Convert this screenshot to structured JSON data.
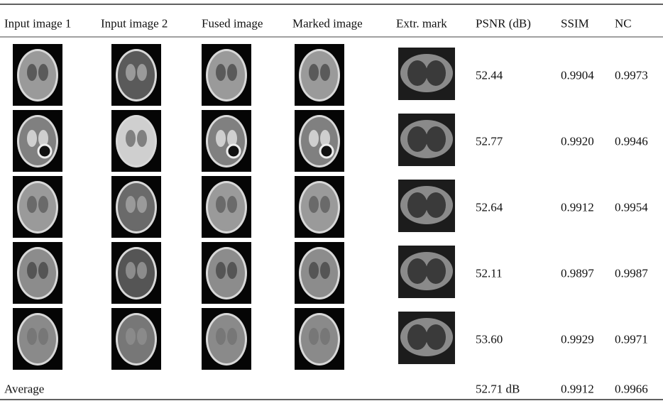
{
  "table": {
    "header": [
      "Input image 1",
      "Input image 2",
      "Fused image",
      "Marked image",
      "Extr. mark",
      "PSNR (dB)",
      "SSIM",
      "NC"
    ],
    "rows": [
      [
        "52.44",
        "0.9904",
        "0.9973"
      ],
      [
        "52.77",
        "0.9920",
        "0.9946"
      ],
      [
        "52.64",
        "0.9912",
        "0.9954"
      ],
      [
        "52.11",
        "0.9897",
        "0.9987"
      ],
      [
        "53.60",
        "0.9929",
        "0.9971"
      ]
    ],
    "average": {
      "label": "Average",
      "values": [
        "52.71 dB",
        "0.9912",
        "0.9966"
      ]
    }
  }
}
